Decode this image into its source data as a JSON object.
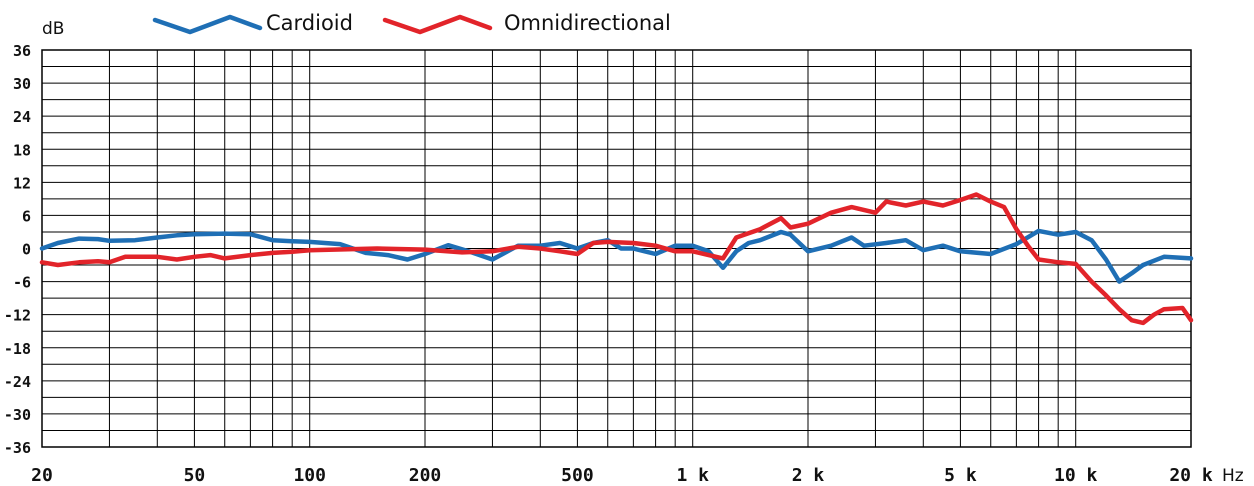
{
  "chart_data": {
    "type": "line",
    "ylabel": "dB",
    "xunit": "Hz",
    "xscale": "log",
    "xlim": [
      20,
      20000
    ],
    "ylim": [
      -36,
      36
    ],
    "grid": true,
    "legend_position": "top",
    "y_ticks": [
      "36",
      "30",
      "24",
      "18",
      "12",
      "6",
      "0",
      "-6",
      "-12",
      "-18",
      "-24",
      "-30",
      "-36"
    ],
    "y_tick_values": [
      36,
      30,
      24,
      18,
      12,
      6,
      0,
      -6,
      -12,
      -18,
      -24,
      -30,
      -36
    ],
    "x_ticks": [
      {
        "value": 20,
        "label": "20"
      },
      {
        "value": 50,
        "label": "50"
      },
      {
        "value": 100,
        "label": "100"
      },
      {
        "value": 200,
        "label": "200"
      },
      {
        "value": 500,
        "label": "500"
      },
      {
        "value": 1000,
        "label": "1 k"
      },
      {
        "value": 2000,
        "label": "2 k"
      },
      {
        "value": 5000,
        "label": "5 k"
      },
      {
        "value": 10000,
        "label": "10 k"
      },
      {
        "value": 20000,
        "label": "20 k"
      }
    ],
    "series": [
      {
        "name": "Cardioid",
        "color": "#1f6fb5",
        "points": [
          [
            20,
            0.0
          ],
          [
            22,
            1.0
          ],
          [
            25,
            1.8
          ],
          [
            28,
            1.7
          ],
          [
            30,
            1.4
          ],
          [
            35,
            1.5
          ],
          [
            40,
            2.0
          ],
          [
            45,
            2.4
          ],
          [
            50,
            2.6
          ],
          [
            60,
            2.7
          ],
          [
            70,
            2.6
          ],
          [
            80,
            1.5
          ],
          [
            90,
            1.3
          ],
          [
            100,
            1.2
          ],
          [
            120,
            0.8
          ],
          [
            140,
            -0.8
          ],
          [
            160,
            -1.2
          ],
          [
            180,
            -2.0
          ],
          [
            200,
            -1.0
          ],
          [
            230,
            0.6
          ],
          [
            260,
            -0.5
          ],
          [
            300,
            -2.0
          ],
          [
            350,
            0.5
          ],
          [
            400,
            0.5
          ],
          [
            450,
            1.0
          ],
          [
            500,
            0.0
          ],
          [
            550,
            1.0
          ],
          [
            600,
            1.5
          ],
          [
            650,
            0.0
          ],
          [
            700,
            0.0
          ],
          [
            800,
            -1.0
          ],
          [
            900,
            0.5
          ],
          [
            1000,
            0.5
          ],
          [
            1100,
            -0.5
          ],
          [
            1200,
            -3.5
          ],
          [
            1300,
            -0.5
          ],
          [
            1400,
            1.0
          ],
          [
            1500,
            1.5
          ],
          [
            1700,
            3.0
          ],
          [
            1800,
            2.5
          ],
          [
            2000,
            -0.5
          ],
          [
            2300,
            0.5
          ],
          [
            2600,
            2.0
          ],
          [
            2800,
            0.5
          ],
          [
            3200,
            1.0
          ],
          [
            3600,
            1.5
          ],
          [
            4000,
            -0.3
          ],
          [
            4500,
            0.5
          ],
          [
            5000,
            -0.5
          ],
          [
            6000,
            -1.0
          ],
          [
            7000,
            0.8
          ],
          [
            8000,
            3.2
          ],
          [
            9000,
            2.5
          ],
          [
            10000,
            3.0
          ],
          [
            11000,
            1.5
          ],
          [
            12000,
            -2.0
          ],
          [
            13000,
            -6.0
          ],
          [
            14000,
            -4.5
          ],
          [
            15000,
            -3.0
          ],
          [
            17000,
            -1.5
          ],
          [
            20000,
            -1.8
          ]
        ]
      },
      {
        "name": "Omnidirectional",
        "color": "#e2242a",
        "points": [
          [
            20,
            -2.5
          ],
          [
            22,
            -3.0
          ],
          [
            25,
            -2.5
          ],
          [
            28,
            -2.3
          ],
          [
            30,
            -2.5
          ],
          [
            33,
            -1.5
          ],
          [
            40,
            -1.5
          ],
          [
            45,
            -2.0
          ],
          [
            50,
            -1.5
          ],
          [
            55,
            -1.2
          ],
          [
            60,
            -1.8
          ],
          [
            70,
            -1.2
          ],
          [
            80,
            -0.8
          ],
          [
            90,
            -0.6
          ],
          [
            100,
            -0.3
          ],
          [
            150,
            0.0
          ],
          [
            200,
            -0.2
          ],
          [
            250,
            -0.7
          ],
          [
            300,
            -0.5
          ],
          [
            350,
            0.3
          ],
          [
            400,
            0.0
          ],
          [
            450,
            -0.5
          ],
          [
            500,
            -1.0
          ],
          [
            550,
            1.0
          ],
          [
            600,
            1.2
          ],
          [
            700,
            1.0
          ],
          [
            800,
            0.5
          ],
          [
            900,
            -0.5
          ],
          [
            1000,
            -0.5
          ],
          [
            1100,
            -1.2
          ],
          [
            1200,
            -1.8
          ],
          [
            1300,
            2.0
          ],
          [
            1500,
            3.5
          ],
          [
            1700,
            5.5
          ],
          [
            1800,
            3.8
          ],
          [
            2000,
            4.5
          ],
          [
            2300,
            6.5
          ],
          [
            2600,
            7.5
          ],
          [
            3000,
            6.5
          ],
          [
            3200,
            8.5
          ],
          [
            3600,
            7.8
          ],
          [
            4000,
            8.5
          ],
          [
            4500,
            7.8
          ],
          [
            5000,
            8.8
          ],
          [
            5500,
            9.8
          ],
          [
            6000,
            8.5
          ],
          [
            6500,
            7.5
          ],
          [
            7000,
            3.5
          ],
          [
            7500,
            0.5
          ],
          [
            8000,
            -2.0
          ],
          [
            9000,
            -2.5
          ],
          [
            10000,
            -2.8
          ],
          [
            11000,
            -6.0
          ],
          [
            12000,
            -8.5
          ],
          [
            13000,
            -11.0
          ],
          [
            14000,
            -13.0
          ],
          [
            15000,
            -13.5
          ],
          [
            16000,
            -12.0
          ],
          [
            17000,
            -11.0
          ],
          [
            19000,
            -10.8
          ],
          [
            20000,
            -13.0
          ]
        ]
      }
    ]
  }
}
